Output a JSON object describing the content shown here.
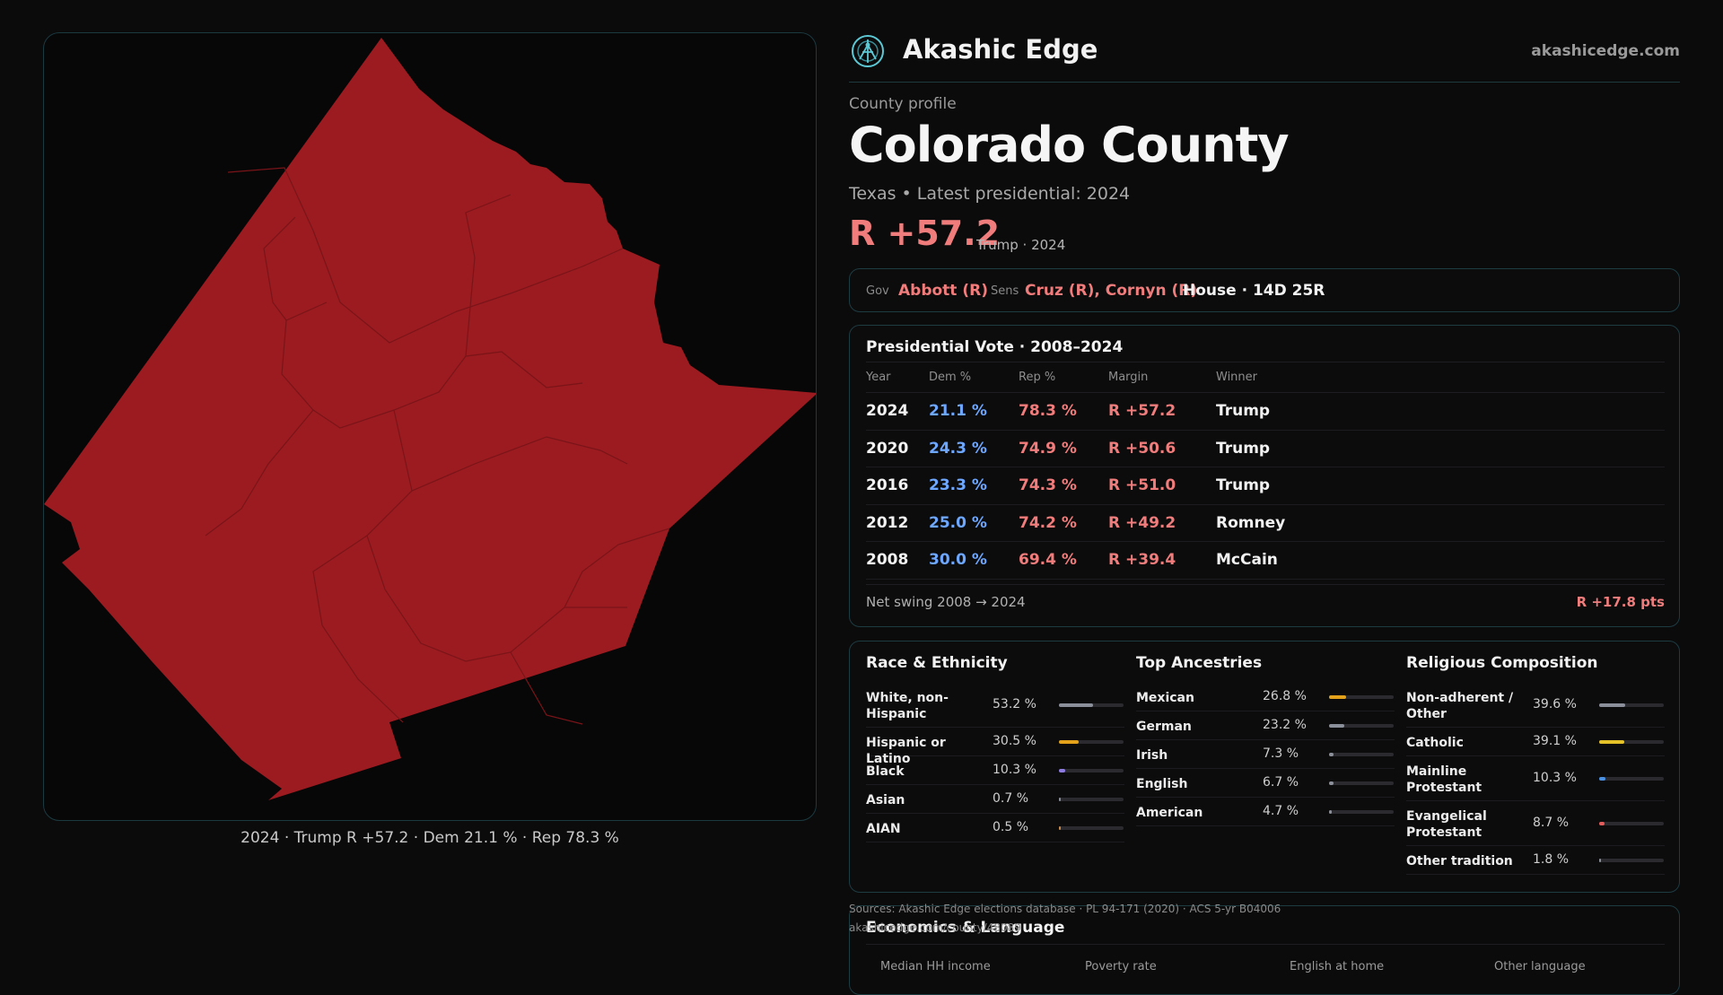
{
  "brand": {
    "name": "Akashic Edge",
    "site": "akashicedge.com",
    "accent": "#5cc8d4"
  },
  "map": {
    "fill": "#9b1b20",
    "caption": "2024 · Trump R +57.2 · Dem 21.1 % · Rep 78.3 %"
  },
  "profile": {
    "eyebrow": "County profile",
    "title": "Colorado County",
    "subtitle": "Texas • Latest presidential: 2024",
    "margin": "R +57.2",
    "margin_note": "Trump · 2024"
  },
  "officials": {
    "gov_label": "Gov",
    "gov": "Abbott (R)",
    "sens_label": "Sens",
    "sens": "Cruz (R), Cornyn (R)",
    "house": "House · 14D 25R"
  },
  "presidential": {
    "title": "Presidential Vote · 2008–2024",
    "headers": [
      "Year",
      "Dem %",
      "Rep %",
      "Margin",
      "Winner"
    ],
    "rows": [
      {
        "year": "2024",
        "dem": "21.1 %",
        "rep": "78.3 %",
        "margin": "R +57.2",
        "winner": "Trump"
      },
      {
        "year": "2020",
        "dem": "24.3 %",
        "rep": "74.9 %",
        "margin": "R +50.6",
        "winner": "Trump"
      },
      {
        "year": "2016",
        "dem": "23.3 %",
        "rep": "74.3 %",
        "margin": "R +51.0",
        "winner": "Trump"
      },
      {
        "year": "2012",
        "dem": "25.0 %",
        "rep": "74.2 %",
        "margin": "R +49.2",
        "winner": "Romney"
      },
      {
        "year": "2008",
        "dem": "30.0 %",
        "rep": "69.4 %",
        "margin": "R +39.4",
        "winner": "McCain"
      }
    ],
    "swing_label": "Net swing 2008 → 2024",
    "swing_value": "R +17.8 pts"
  },
  "race": {
    "title": "Race & Ethnicity",
    "items": [
      {
        "label": "White, non-Hispanic",
        "pct": "53.2 %",
        "value": 53.2,
        "color": "#8b8f9a"
      },
      {
        "label": "Hispanic or Latino",
        "pct": "30.5 %",
        "value": 30.5,
        "color": "#e3a21a"
      },
      {
        "label": "Black",
        "pct": "10.3 %",
        "value": 10.3,
        "color": "#8e7be0"
      },
      {
        "label": "Asian",
        "pct": "0.7 %",
        "value": 0.7,
        "color": "#8b8f9a"
      },
      {
        "label": "AIAN",
        "pct": "0.5 %",
        "value": 0.5,
        "color": "#c98a4a"
      }
    ]
  },
  "ancestry": {
    "title": "Top Ancestries",
    "items": [
      {
        "label": "Mexican",
        "pct": "26.8 %",
        "value": 26.8,
        "color": "#e3a21a"
      },
      {
        "label": "German",
        "pct": "23.2 %",
        "value": 23.2,
        "color": "#8b8f9a"
      },
      {
        "label": "Irish",
        "pct": "7.3 %",
        "value": 7.3,
        "color": "#8b8f9a"
      },
      {
        "label": "English",
        "pct": "6.7 %",
        "value": 6.7,
        "color": "#8b8f9a"
      },
      {
        "label": "American",
        "pct": "4.7 %",
        "value": 4.7,
        "color": "#8b8f9a"
      }
    ]
  },
  "religion": {
    "title": "Religious Composition",
    "items": [
      {
        "label": "Non-adherent / Other",
        "pct": "39.6 %",
        "value": 39.6,
        "color": "#8b8f9a"
      },
      {
        "label": "Catholic",
        "pct": "39.1 %",
        "value": 39.1,
        "color": "#e6c229"
      },
      {
        "label": "Mainline Protestant",
        "pct": "10.3 %",
        "value": 10.3,
        "color": "#4a90e2"
      },
      {
        "label": "Evangelical Protestant",
        "pct": "8.7 %",
        "value": 8.7,
        "color": "#e25c5c"
      },
      {
        "label": "Other tradition",
        "pct": "1.8 %",
        "value": 1.8,
        "color": "#8b8f9a"
      }
    ]
  },
  "sources": {
    "line1": "Sources: Akashic Edge elections database · PL 94-171 (2020) · ACS 5-yr B04006",
    "line2": "akashicedge.com/county/48089"
  },
  "economics": {
    "title": "Economics & Language",
    "headers": [
      "Median HH income",
      "Poverty rate",
      "English at home",
      "Other language"
    ]
  }
}
